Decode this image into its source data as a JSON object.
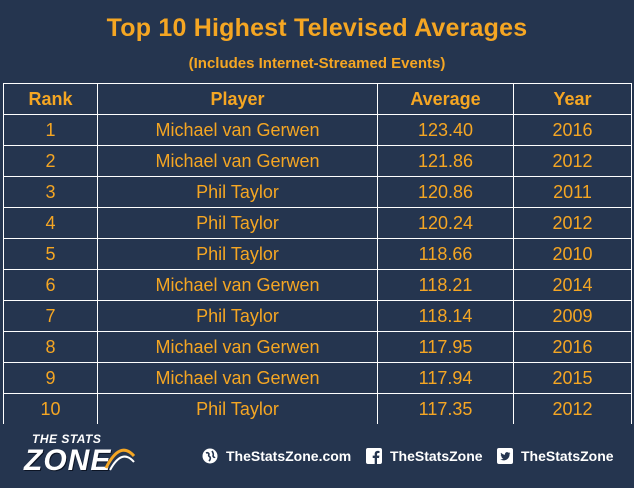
{
  "title": "Top 10 Highest Televised Averages",
  "subtitle": "(Includes Internet-Streamed Events)",
  "table": {
    "headers": [
      "Rank",
      "Player",
      "Average",
      "Year"
    ],
    "rows": [
      [
        "1",
        "Michael van Gerwen",
        "123.40",
        "2016"
      ],
      [
        "2",
        "Michael van Gerwen",
        "121.86",
        "2012"
      ],
      [
        "3",
        "Phil Taylor",
        "120.86",
        "2011"
      ],
      [
        "4",
        "Phil Taylor",
        "120.24",
        "2012"
      ],
      [
        "5",
        "Phil Taylor",
        "118.66",
        "2010"
      ],
      [
        "6",
        "Michael van Gerwen",
        "118.21",
        "2014"
      ],
      [
        "7",
        "Phil Taylor",
        "118.14",
        "2009"
      ],
      [
        "8",
        "Michael van Gerwen",
        "117.95",
        "2016"
      ],
      [
        "9",
        "Michael van Gerwen",
        "117.94",
        "2015"
      ],
      [
        "10",
        "Phil Taylor",
        "117.35",
        "2012"
      ]
    ]
  },
  "footer": {
    "logo_top": "THE STATS",
    "logo_main": "ZONE",
    "links": [
      {
        "icon": "globe-icon",
        "label": "TheStatsZone.com"
      },
      {
        "icon": "facebook-icon",
        "label": "TheStatsZone"
      },
      {
        "icon": "twitter-icon",
        "label": "TheStatsZone"
      }
    ]
  },
  "colors": {
    "background": "#25354f",
    "accent": "#f5a623",
    "border": "#ffffff"
  }
}
